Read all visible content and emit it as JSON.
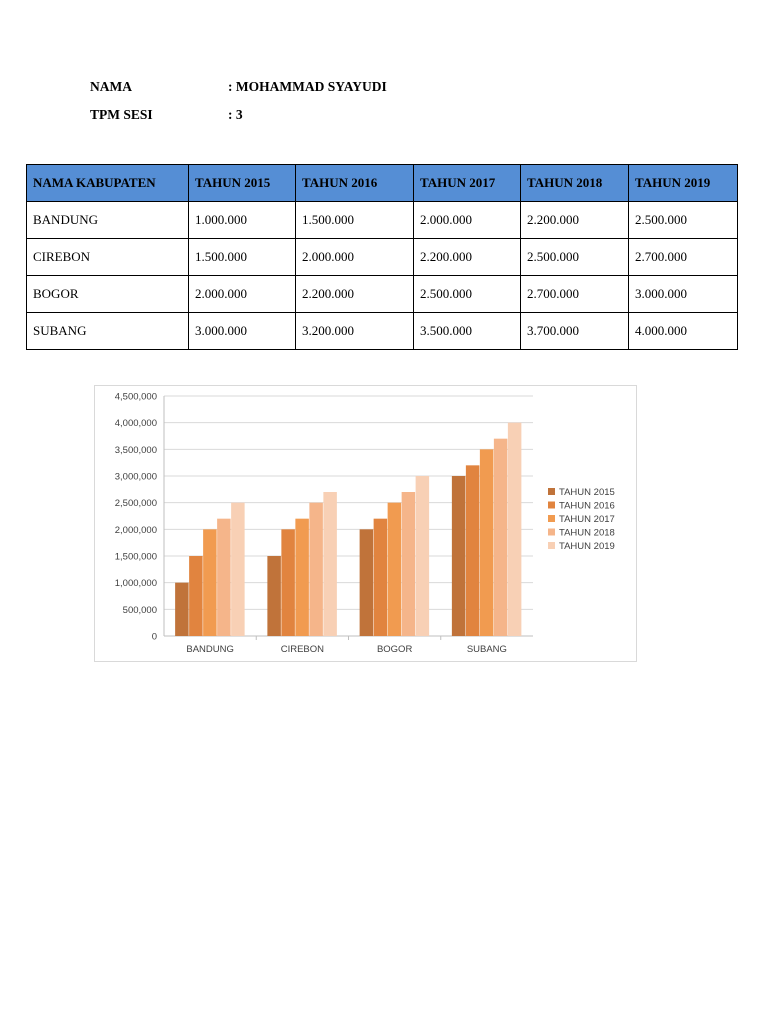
{
  "header": {
    "name_label": "NAMA",
    "name_value": ": MOHAMMAD SYAYUDI",
    "session_label": "TPM SESI",
    "session_value": ": 3"
  },
  "table": {
    "headers": [
      "NAMA KABUPATEN",
      "TAHUN 2015",
      "TAHUN 2016",
      "TAHUN 2017",
      "TAHUN 2018",
      "TAHUN 2019"
    ],
    "rows": [
      [
        "BANDUNG",
        "1.000.000",
        "1.500.000",
        "2.000.000",
        "2.200.000",
        "2.500.000"
      ],
      [
        "CIREBON",
        "1.500.000",
        "2.000.000",
        "2.200.000",
        "2.500.000",
        "2.700.000"
      ],
      [
        "BOGOR",
        "2.000.000",
        "2.200.000",
        "2.500.000",
        "2.700.000",
        "3.000.000"
      ],
      [
        "SUBANG",
        "3.000.000",
        "3.200.000",
        "3.500.000",
        "3.700.000",
        "4.000.000"
      ]
    ]
  },
  "chart_data": {
    "type": "bar",
    "categories": [
      "BANDUNG",
      "CIREBON",
      "BOGOR",
      "SUBANG"
    ],
    "series": [
      {
        "name": "TAHUN 2015",
        "values": [
          1000000,
          1500000,
          2000000,
          3000000
        ],
        "color": "#c0733a"
      },
      {
        "name": "TAHUN 2016",
        "values": [
          1500000,
          2000000,
          2200000,
          3200000
        ],
        "color": "#e1843f"
      },
      {
        "name": "TAHUN 2017",
        "values": [
          2000000,
          2200000,
          2500000,
          3500000
        ],
        "color": "#f19b50"
      },
      {
        "name": "TAHUN 2018",
        "values": [
          2200000,
          2500000,
          2700000,
          3700000
        ],
        "color": "#f5b58a"
      },
      {
        "name": "TAHUN 2019",
        "values": [
          2500000,
          2700000,
          3000000,
          4000000
        ],
        "color": "#f8d0b5"
      }
    ],
    "yticks": [
      "0",
      "500,000",
      "1,000,000",
      "1,500,000",
      "2,000,000",
      "2,500,000",
      "3,000,000",
      "3,500,000",
      "4,000,000",
      "4,500,000"
    ],
    "ylim": [
      0,
      4500000
    ],
    "title": "",
    "xlabel": "",
    "ylabel": "",
    "grid": true,
    "legend": "right"
  }
}
